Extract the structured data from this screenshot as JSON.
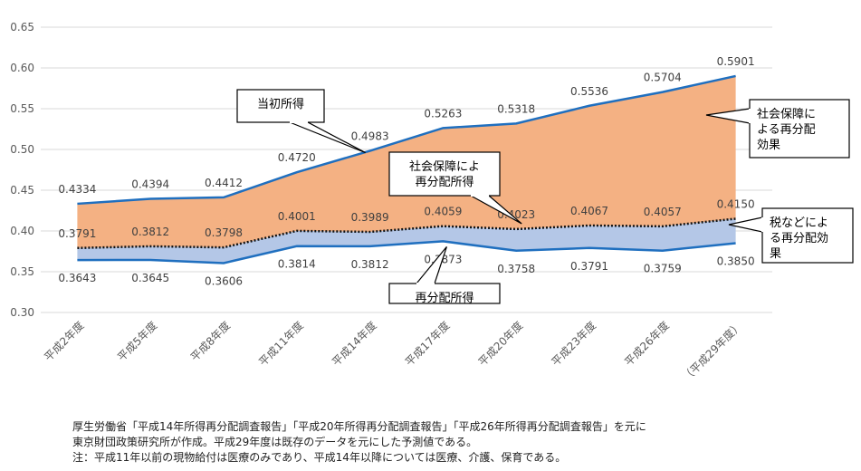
{
  "chart_data": {
    "type": "area",
    "categories": [
      "平成2年度",
      "平成5年度",
      "平成8年度",
      "平成11年度",
      "平成14年度",
      "平成17年度",
      "平成20年度",
      "平成23年度",
      "平成26年度",
      "（平成29年度）"
    ],
    "ylim": [
      0.3,
      0.65
    ],
    "yticks": [
      "0.30",
      "0.35",
      "0.40",
      "0.45",
      "0.50",
      "0.55",
      "0.60",
      "0.65"
    ],
    "grid": true,
    "series": [
      {
        "key": "initial",
        "values": [
          0.4334,
          0.4394,
          0.4412,
          0.472,
          0.4983,
          0.5263,
          0.5318,
          0.5536,
          0.5704,
          0.5901
        ],
        "labels": [
          "0.4334",
          "0.4394",
          "0.4412",
          "0.4720",
          "0.4983",
          "0.5263",
          "0.5318",
          "0.5536",
          "0.5704",
          "0.5901"
        ],
        "color": "#1f6fbf"
      },
      {
        "key": "after_social_security",
        "values": [
          0.3791,
          0.3812,
          0.3798,
          0.4001,
          0.3989,
          0.4059,
          0.4023,
          0.4067,
          0.4057,
          0.415
        ],
        "labels": [
          "0.3791",
          "0.3812",
          "0.3798",
          "0.4001",
          "0.3989",
          "0.4059",
          "0.4023",
          "0.4067",
          "0.4057",
          "0.4150"
        ],
        "color": "#111111"
      },
      {
        "key": "redistributed",
        "values": [
          0.3643,
          0.3645,
          0.3606,
          0.3814,
          0.3812,
          0.3873,
          0.3758,
          0.3791,
          0.3759,
          0.385
        ],
        "labels": [
          "0.3643",
          "0.3645",
          "0.3606",
          "0.3814",
          "0.3812",
          "0.3873",
          "0.3758",
          "0.3791",
          "0.3759",
          "0.3850"
        ],
        "color": "#1f6fbf"
      }
    ],
    "fills": {
      "upper": "#f4b183",
      "lower": "#b4c7e7"
    },
    "callouts": {
      "initial": "当初所得",
      "after_social_security": [
        "社会保障によ",
        "再分配所得"
      ],
      "redistributed": "再分配所得",
      "social_security_effect": [
        "社会保障に",
        "よる再分配",
        "効果"
      ],
      "tax_effect": [
        "税などによ",
        "る再分配効",
        "果"
      ]
    }
  },
  "notes": [
    "厚生労働省「平成14年所得再分配調査報告」「平成20年所得再分配調査報告」「平成26年所得再分配調査報告」を元に",
    "東京財団政策研究所が作成。平成29年度は既存のデータを元にした予測値である。",
    "注：平成11年以前の現物給付は医療のみであり、平成14年以降については医療、介護、保育である。"
  ]
}
